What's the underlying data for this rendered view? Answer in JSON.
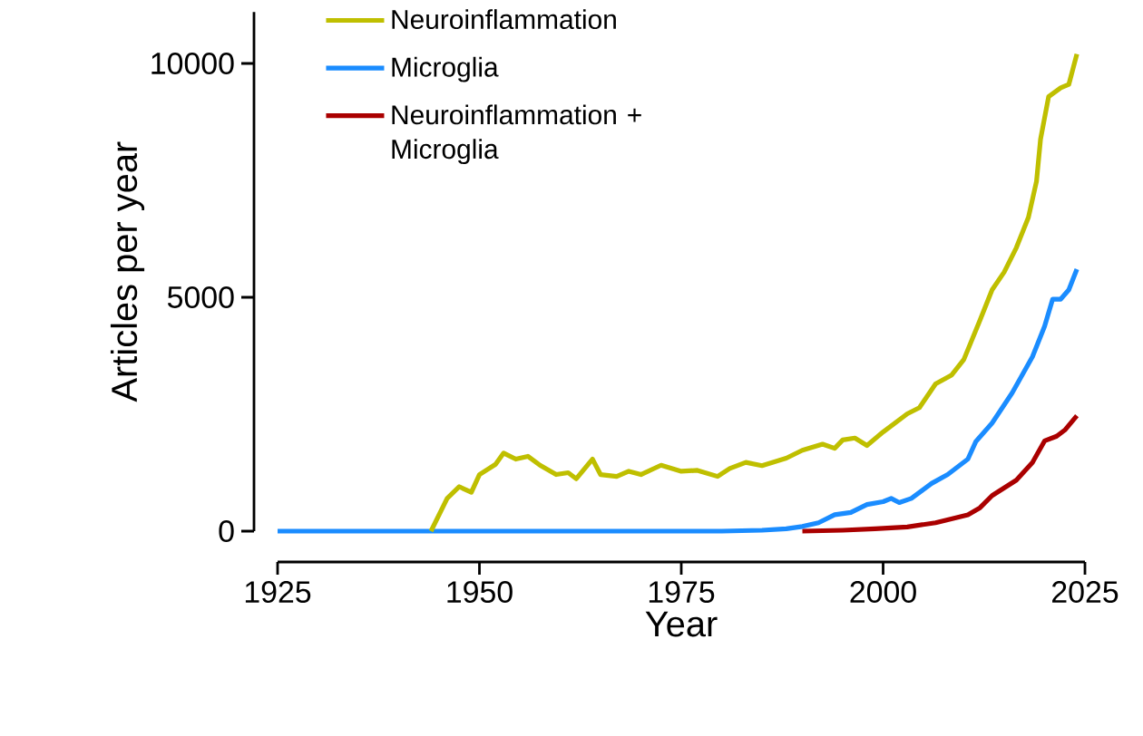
{
  "chart_data": {
    "type": "line",
    "xlabel": "Year",
    "ylabel": "Articles per year",
    "xlim": [
      1925,
      2025
    ],
    "ylim": [
      0,
      11100
    ],
    "xticks": [
      1925,
      1950,
      1975,
      2000,
      2025
    ],
    "yticks": [
      0,
      5000,
      10000
    ],
    "legend": "top left",
    "marker": "none",
    "line_style": "solid",
    "series": [
      {
        "name": "Neuroinflammation",
        "color": "#bfbf00",
        "x": [
          1944,
          1946,
          1947.5,
          1949,
          1950,
          1952,
          1953,
          1954.5,
          1956,
          1957.5,
          1959.5,
          1961,
          1962,
          1964,
          1965,
          1967,
          1968.5,
          1970,
          1972.5,
          1975,
          1977,
          1979.5,
          1981,
          1983,
          1985,
          1988,
          1990,
          1992.5,
          1994,
          1995,
          1996.5,
          1998,
          2000,
          2003,
          2004.5,
          2006.5,
          2008.5,
          2010,
          2012,
          2013.5,
          2015,
          2016.5,
          2018,
          2019,
          2019.5,
          2020.5,
          2022,
          2023,
          2024
        ],
        "values": [
          0,
          700,
          950,
          830,
          1210,
          1430,
          1670,
          1540,
          1600,
          1410,
          1210,
          1250,
          1120,
          1540,
          1210,
          1170,
          1280,
          1210,
          1410,
          1280,
          1300,
          1170,
          1340,
          1470,
          1400,
          1560,
          1730,
          1860,
          1770,
          1950,
          1990,
          1830,
          2120,
          2510,
          2640,
          3150,
          3340,
          3670,
          4510,
          5160,
          5540,
          6060,
          6710,
          7480,
          8380,
          9290,
          9480,
          9550,
          10200
        ]
      },
      {
        "name": "Microglia",
        "color": "#1a8cff",
        "x": [
          1925,
          1975,
          1980,
          1985,
          1988,
          1990,
          1992,
          1994,
          1996,
          1998,
          2000,
          2001,
          2002,
          2003.5,
          2006,
          2008,
          2010.5,
          2011.5,
          2013.5,
          2016,
          2018.5,
          2020,
          2021,
          2022,
          2023,
          2024
        ],
        "values": [
          0,
          0,
          0,
          20,
          50,
          100,
          180,
          350,
          400,
          570,
          630,
          700,
          610,
          700,
          1020,
          1210,
          1540,
          1920,
          2310,
          2960,
          3730,
          4380,
          4960,
          4960,
          5160,
          5600
        ]
      },
      {
        "name": "Neuroinflammation + Microglia",
        "color": "#aa0000",
        "x": [
          1990,
          1995,
          1999,
          2003,
          2006.5,
          2010.5,
          2012,
          2013.5,
          2016.5,
          2018.5,
          2020,
          2021.5,
          2022.5,
          2024
        ],
        "values": [
          0,
          20,
          50,
          90,
          180,
          350,
          500,
          760,
          1090,
          1470,
          1930,
          2030,
          2160,
          2470
        ]
      }
    ]
  }
}
